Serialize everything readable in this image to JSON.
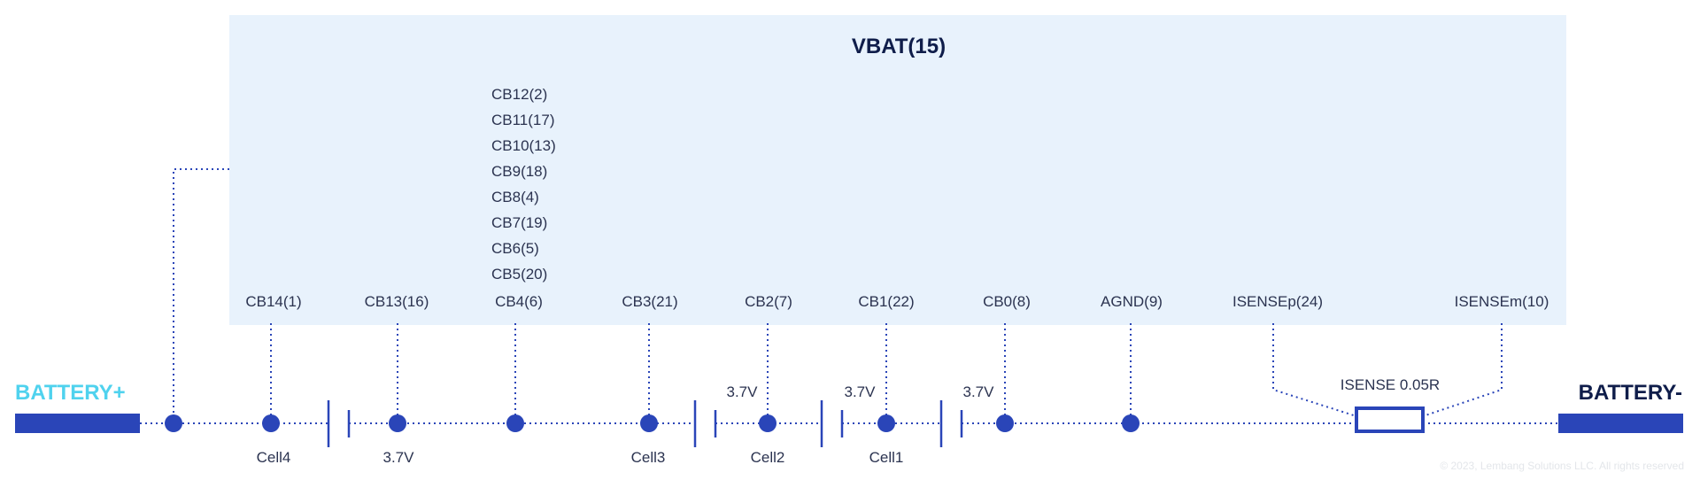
{
  "colors": {
    "box_fill": "#e8f2fc",
    "wire": "#2a45b8",
    "battery_plus": "#4fd2ee",
    "battery_minus": "#0f1d4a",
    "label": "#2b3350"
  },
  "vbat_label": "VBAT(15)",
  "cb_stack": [
    "CB12(2)",
    "CB11(17)",
    "CB10(13)",
    "CB9(18)",
    "CB8(4)",
    "CB7(19)",
    "CB6(5)",
    "CB5(20)"
  ],
  "pins": {
    "cb14": "CB14(1)",
    "cb13": "CB13(16)",
    "cb4": "CB4(6)",
    "cb3": "CB3(21)",
    "cb2": "CB2(7)",
    "cb1": "CB1(22)",
    "cb0": "CB0(8)",
    "agnd": "AGND(9)",
    "isensep": "ISENSEp(24)",
    "isensem": "ISENSEm(10)"
  },
  "battery_plus": "BATTERY+",
  "battery_minus": "BATTERY-",
  "cells": {
    "cell4": "Cell4",
    "cell4_voltage": "3.7V",
    "cell3": "Cell3",
    "cell2": "Cell2",
    "cell2_voltage": "3.7V",
    "cell1": "Cell1",
    "cell1_voltage": "3.7V",
    "cell0_voltage": "3.7V"
  },
  "isense_resistor": "ISENSE 0.05R",
  "copyright": "© 2023, Lembang Solutions LLC. All rights reserved"
}
